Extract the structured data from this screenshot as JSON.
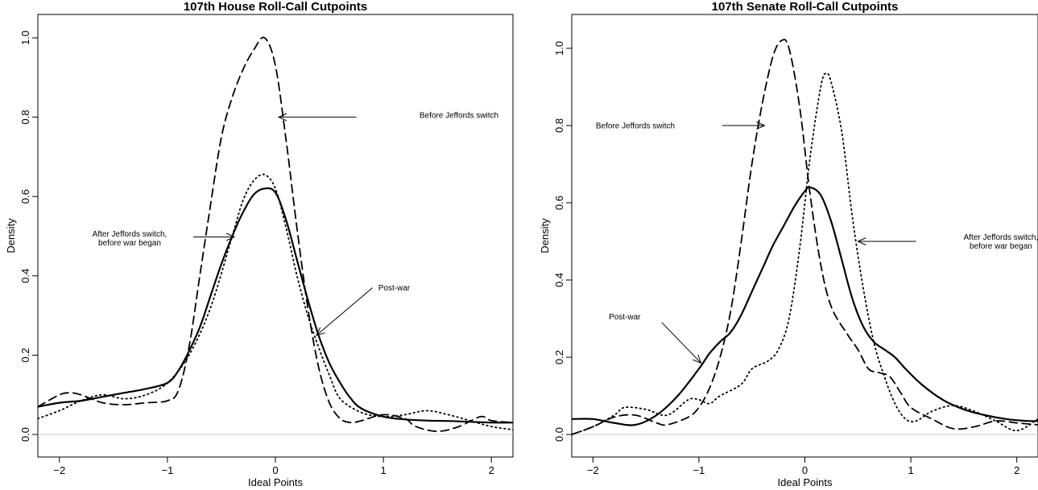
{
  "chart_data": [
    {
      "type": "line",
      "title": "107th House Roll-Call Cutpoints",
      "xlabel": "Ideal Points",
      "ylabel": "Density",
      "xlim": [
        -2.2,
        2.2
      ],
      "ylim": [
        0,
        1.0
      ],
      "x_ticks": [
        "−2",
        "−1",
        "0",
        "1",
        "2"
      ],
      "y_ticks": [
        "0.0",
        "0.2",
        "0.4",
        "0.6",
        "0.8",
        "1.0"
      ],
      "grid": false,
      "series": [
        {
          "name": "Before Jeffords switch",
          "style": "dashed",
          "points": [
            [
              -2.2,
              0.07
            ],
            [
              -2.0,
              0.1
            ],
            [
              -1.9,
              0.105
            ],
            [
              -1.8,
              0.1
            ],
            [
              -1.6,
              0.08
            ],
            [
              -1.4,
              0.075
            ],
            [
              -1.2,
              0.08
            ],
            [
              -1.0,
              0.085
            ],
            [
              -0.9,
              0.11
            ],
            [
              -0.8,
              0.22
            ],
            [
              -0.7,
              0.4
            ],
            [
              -0.6,
              0.58
            ],
            [
              -0.5,
              0.75
            ],
            [
              -0.4,
              0.85
            ],
            [
              -0.3,
              0.92
            ],
            [
              -0.2,
              0.97
            ],
            [
              -0.1,
              1.0
            ],
            [
              0.0,
              0.93
            ],
            [
              0.1,
              0.74
            ],
            [
              0.2,
              0.52
            ],
            [
              0.3,
              0.32
            ],
            [
              0.4,
              0.17
            ],
            [
              0.5,
              0.08
            ],
            [
              0.6,
              0.04
            ],
            [
              0.7,
              0.03
            ],
            [
              0.8,
              0.035
            ],
            [
              1.0,
              0.05
            ],
            [
              1.2,
              0.04
            ],
            [
              1.3,
              0.02
            ],
            [
              1.5,
              0.008
            ],
            [
              1.7,
              0.02
            ],
            [
              1.9,
              0.045
            ],
            [
              2.0,
              0.035
            ],
            [
              2.2,
              0.03
            ]
          ]
        },
        {
          "name": "After Jeffords switch, before war began",
          "style": "dotted",
          "points": [
            [
              -2.2,
              0.04
            ],
            [
              -2.0,
              0.06
            ],
            [
              -1.8,
              0.085
            ],
            [
              -1.6,
              0.1
            ],
            [
              -1.4,
              0.09
            ],
            [
              -1.2,
              0.1
            ],
            [
              -1.0,
              0.13
            ],
            [
              -0.8,
              0.2
            ],
            [
              -0.6,
              0.32
            ],
            [
              -0.4,
              0.5
            ],
            [
              -0.3,
              0.59
            ],
            [
              -0.2,
              0.64
            ],
            [
              -0.1,
              0.655
            ],
            [
              0.0,
              0.62
            ],
            [
              0.1,
              0.52
            ],
            [
              0.2,
              0.4
            ],
            [
              0.3,
              0.3
            ],
            [
              0.4,
              0.22
            ],
            [
              0.5,
              0.15
            ],
            [
              0.6,
              0.09
            ],
            [
              0.8,
              0.055
            ],
            [
              1.0,
              0.045
            ],
            [
              1.2,
              0.05
            ],
            [
              1.4,
              0.06
            ],
            [
              1.6,
              0.05
            ],
            [
              1.8,
              0.035
            ],
            [
              2.0,
              0.02
            ],
            [
              2.2,
              0.012
            ]
          ]
        },
        {
          "name": "Post-war",
          "style": "solid",
          "points": [
            [
              -2.2,
              0.07
            ],
            [
              -2.0,
              0.08
            ],
            [
              -1.8,
              0.085
            ],
            [
              -1.6,
              0.095
            ],
            [
              -1.4,
              0.105
            ],
            [
              -1.2,
              0.115
            ],
            [
              -1.0,
              0.13
            ],
            [
              -0.9,
              0.16
            ],
            [
              -0.8,
              0.21
            ],
            [
              -0.7,
              0.27
            ],
            [
              -0.6,
              0.35
            ],
            [
              -0.5,
              0.43
            ],
            [
              -0.4,
              0.5
            ],
            [
              -0.3,
              0.56
            ],
            [
              -0.2,
              0.605
            ],
            [
              -0.1,
              0.62
            ],
            [
              0.0,
              0.61
            ],
            [
              0.1,
              0.54
            ],
            [
              0.2,
              0.44
            ],
            [
              0.3,
              0.34
            ],
            [
              0.4,
              0.25
            ],
            [
              0.5,
              0.18
            ],
            [
              0.6,
              0.13
            ],
            [
              0.7,
              0.09
            ],
            [
              0.8,
              0.065
            ],
            [
              1.0,
              0.045
            ],
            [
              1.2,
              0.038
            ],
            [
              1.4,
              0.035
            ],
            [
              1.6,
              0.034
            ],
            [
              1.8,
              0.032
            ],
            [
              2.0,
              0.03
            ],
            [
              2.2,
              0.03
            ]
          ]
        }
      ],
      "annotations": [
        {
          "lines": [
            "Before Jeffords switch"
          ],
          "x": 1.7,
          "y": 0.805,
          "anchor": "middle",
          "arrow_from": [
            0.75,
            0.8
          ],
          "arrow_to": [
            0.03,
            0.8
          ]
        },
        {
          "lines": [
            "After Jeffords switch,",
            "before war began"
          ],
          "x": -1.35,
          "y": 0.495,
          "anchor": "middle",
          "arrow_from": [
            -0.76,
            0.498
          ],
          "arrow_to": [
            -0.38,
            0.498
          ]
        },
        {
          "lines": [
            "Post-war"
          ],
          "x": 1.1,
          "y": 0.37,
          "anchor": "middle",
          "arrow_from": [
            0.9,
            0.37
          ],
          "arrow_to": [
            0.38,
            0.25
          ]
        }
      ]
    },
    {
      "type": "line",
      "title": "107th Senate Roll-Call Cutpoints",
      "xlabel": "Ideal Points",
      "ylabel": "Density",
      "xlim": [
        -2.2,
        2.2
      ],
      "ylim": [
        0,
        1.05
      ],
      "x_ticks": [
        "−2",
        "−1",
        "0",
        "1",
        "2"
      ],
      "y_ticks": [
        "0.0",
        "0.2",
        "0.4",
        "0.6",
        "0.8",
        "1.0"
      ],
      "grid": false,
      "series": [
        {
          "name": "Before Jeffords switch",
          "style": "dashed",
          "points": [
            [
              -2.2,
              0.0
            ],
            [
              -2.0,
              0.02
            ],
            [
              -1.8,
              0.045
            ],
            [
              -1.6,
              0.05
            ],
            [
              -1.4,
              0.03
            ],
            [
              -1.3,
              0.025
            ],
            [
              -1.1,
              0.045
            ],
            [
              -1.0,
              0.07
            ],
            [
              -0.9,
              0.12
            ],
            [
              -0.8,
              0.2
            ],
            [
              -0.7,
              0.32
            ],
            [
              -0.6,
              0.5
            ],
            [
              -0.5,
              0.7
            ],
            [
              -0.4,
              0.86
            ],
            [
              -0.3,
              0.98
            ],
            [
              -0.22,
              1.02
            ],
            [
              -0.15,
              1.0
            ],
            [
              -0.05,
              0.85
            ],
            [
              0.05,
              0.62
            ],
            [
              0.15,
              0.44
            ],
            [
              0.25,
              0.33
            ],
            [
              0.4,
              0.26
            ],
            [
              0.5,
              0.22
            ],
            [
              0.6,
              0.17
            ],
            [
              0.7,
              0.16
            ],
            [
              0.8,
              0.15
            ],
            [
              0.9,
              0.11
            ],
            [
              1.0,
              0.07
            ],
            [
              1.2,
              0.04
            ],
            [
              1.4,
              0.015
            ],
            [
              1.6,
              0.02
            ],
            [
              1.8,
              0.035
            ],
            [
              2.0,
              0.03
            ],
            [
              2.2,
              0.025
            ]
          ]
        },
        {
          "name": "After Jeffords switch, before war began",
          "style": "dotted",
          "points": [
            [
              -2.2,
              0.0
            ],
            [
              -2.0,
              0.02
            ],
            [
              -1.8,
              0.05
            ],
            [
              -1.7,
              0.07
            ],
            [
              -1.5,
              0.065
            ],
            [
              -1.3,
              0.05
            ],
            [
              -1.1,
              0.09
            ],
            [
              -1.0,
              0.09
            ],
            [
              -0.9,
              0.08
            ],
            [
              -0.8,
              0.1
            ],
            [
              -0.6,
              0.13
            ],
            [
              -0.5,
              0.17
            ],
            [
              -0.35,
              0.19
            ],
            [
              -0.25,
              0.22
            ],
            [
              -0.15,
              0.3
            ],
            [
              -0.05,
              0.48
            ],
            [
              0.05,
              0.72
            ],
            [
              0.15,
              0.9
            ],
            [
              0.2,
              0.935
            ],
            [
              0.25,
              0.91
            ],
            [
              0.35,
              0.78
            ],
            [
              0.45,
              0.56
            ],
            [
              0.55,
              0.38
            ],
            [
              0.65,
              0.24
            ],
            [
              0.75,
              0.15
            ],
            [
              0.85,
              0.08
            ],
            [
              0.95,
              0.04
            ],
            [
              1.05,
              0.035
            ],
            [
              1.2,
              0.06
            ],
            [
              1.4,
              0.075
            ],
            [
              1.6,
              0.06
            ],
            [
              1.8,
              0.035
            ],
            [
              2.0,
              0.01
            ],
            [
              2.2,
              0.04
            ]
          ]
        },
        {
          "name": "Post-war",
          "style": "solid",
          "points": [
            [
              -2.2,
              0.04
            ],
            [
              -2.0,
              0.04
            ],
            [
              -1.8,
              0.03
            ],
            [
              -1.6,
              0.025
            ],
            [
              -1.4,
              0.05
            ],
            [
              -1.2,
              0.1
            ],
            [
              -1.0,
              0.17
            ],
            [
              -0.9,
              0.21
            ],
            [
              -0.8,
              0.24
            ],
            [
              -0.7,
              0.265
            ],
            [
              -0.6,
              0.31
            ],
            [
              -0.5,
              0.37
            ],
            [
              -0.4,
              0.43
            ],
            [
              -0.3,
              0.49
            ],
            [
              -0.2,
              0.54
            ],
            [
              -0.1,
              0.59
            ],
            [
              0.0,
              0.63
            ],
            [
              0.05,
              0.64
            ],
            [
              0.15,
              0.62
            ],
            [
              0.25,
              0.55
            ],
            [
              0.35,
              0.45
            ],
            [
              0.45,
              0.35
            ],
            [
              0.55,
              0.28
            ],
            [
              0.65,
              0.24
            ],
            [
              0.75,
              0.22
            ],
            [
              0.85,
              0.2
            ],
            [
              0.95,
              0.17
            ],
            [
              1.1,
              0.13
            ],
            [
              1.3,
              0.09
            ],
            [
              1.5,
              0.065
            ],
            [
              1.7,
              0.05
            ],
            [
              1.9,
              0.04
            ],
            [
              2.1,
              0.035
            ],
            [
              2.2,
              0.035
            ]
          ]
        }
      ],
      "annotations": [
        {
          "lines": [
            "Before Jeffords switch"
          ],
          "x": -1.6,
          "y": 0.8,
          "anchor": "middle",
          "arrow_from": [
            -0.78,
            0.8
          ],
          "arrow_to": [
            -0.38,
            0.8
          ]
        },
        {
          "lines": [
            "After Jeffords switch,",
            "before war began"
          ],
          "x": 1.85,
          "y": 0.5,
          "anchor": "middle",
          "arrow_from": [
            1.05,
            0.5
          ],
          "arrow_to": [
            0.5,
            0.5
          ]
        },
        {
          "lines": [
            "Post-war"
          ],
          "x": -1.7,
          "y": 0.305,
          "anchor": "middle",
          "arrow_from": [
            -1.35,
            0.29
          ],
          "arrow_to": [
            -0.98,
            0.185
          ]
        }
      ]
    }
  ]
}
